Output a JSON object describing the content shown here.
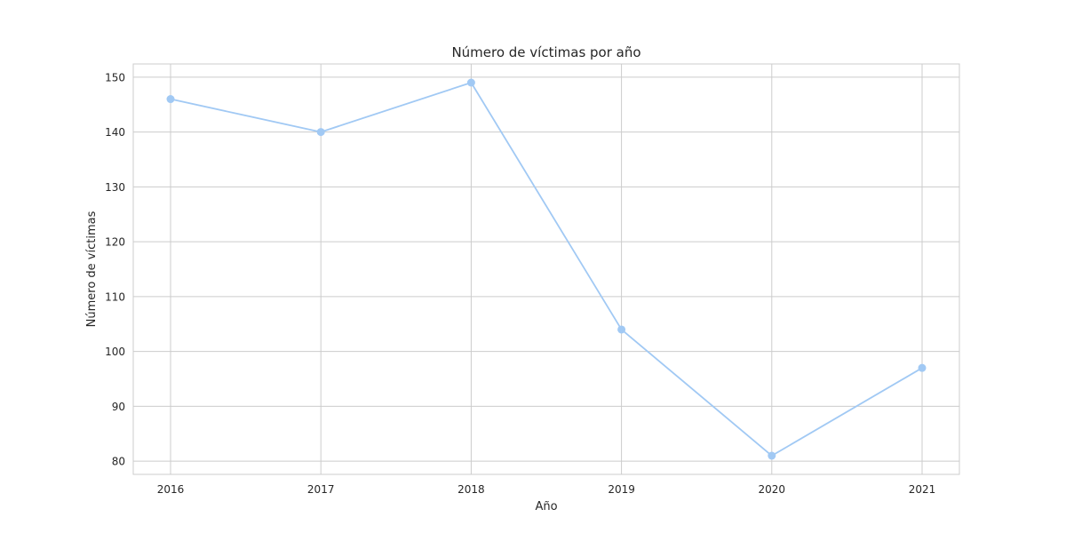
{
  "chart_data": {
    "type": "line",
    "title": "Número de víctimas por año",
    "xlabel": "Año",
    "ylabel": "Número de víctimas",
    "x": [
      "2016",
      "2017",
      "2018",
      "2019",
      "2020",
      "2021"
    ],
    "series": [
      {
        "values": [
          146,
          140,
          149,
          104,
          81,
          97
        ],
        "color": "#a1c9f4",
        "marker": "circle"
      }
    ],
    "ylim": [
      77.6,
      152.4
    ],
    "yticks": [
      80,
      90,
      100,
      110,
      120,
      130,
      140,
      150
    ],
    "grid": true,
    "legend": "none"
  }
}
